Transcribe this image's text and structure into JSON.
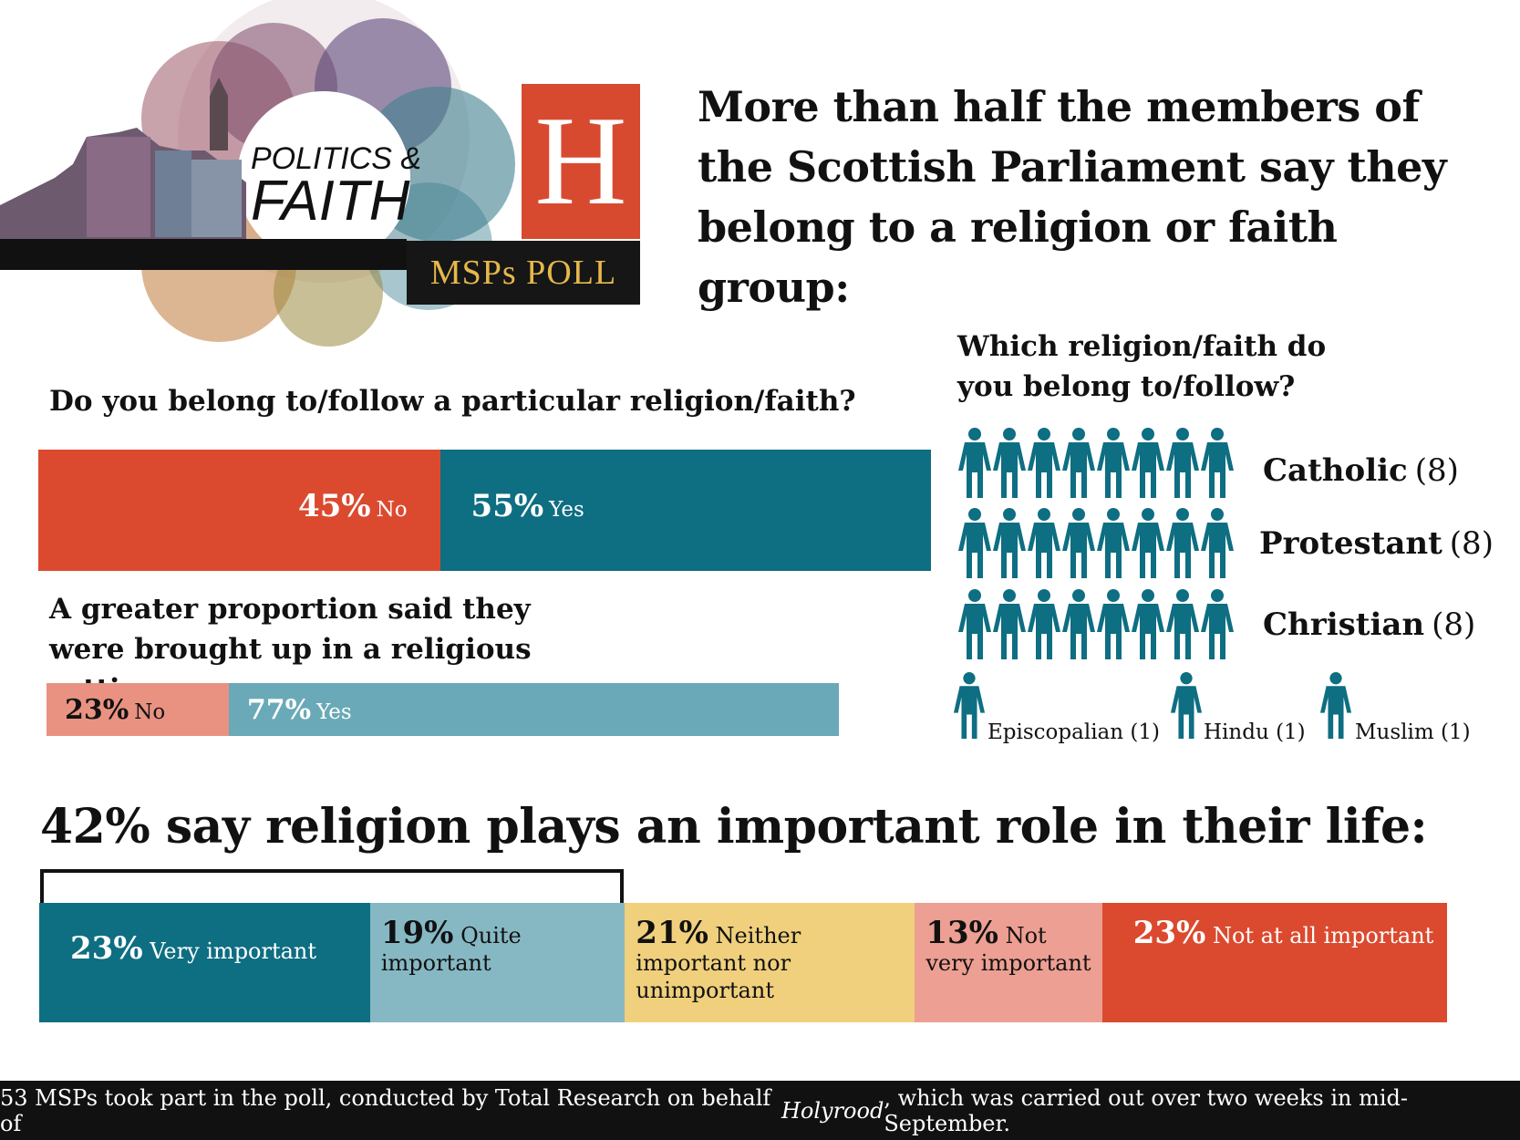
{
  "logo": {
    "line1": "POLITICS &",
    "line2": "FAITH",
    "letter": "H",
    "poll_label": "MSPs POLL"
  },
  "headline": "More than half the members of the Scottish Parliament say they belong to a religion or faith group:",
  "q1": {
    "title": "Do you belong to/follow a particular religion/faith?",
    "segments": [
      {
        "value": "45%",
        "label": "No",
        "pct": 45,
        "color": "#db4a2f"
      },
      {
        "value": "55%",
        "label": "Yes",
        "pct": 55,
        "color": "#0e6e82"
      }
    ]
  },
  "q2": {
    "title": "A greater proportion said they were brought up in a religious setting:",
    "segments": [
      {
        "value": "23%",
        "label": "No",
        "pct": 23,
        "color": "#e99282"
      },
      {
        "value": "77%",
        "label": "Yes",
        "pct": 77,
        "color": "#6aa9b7"
      }
    ]
  },
  "religion": {
    "title": "Which religion/faith do you belong to/follow?",
    "icon_color": "#0e6e82",
    "groups": [
      {
        "name": "Catholic",
        "count_text": "(8)",
        "count": 8
      },
      {
        "name": "Protestant",
        "count_text": "(8)",
        "count": 8
      },
      {
        "name": "Christian",
        "count_text": "(8)",
        "count": 8
      }
    ],
    "small": [
      {
        "label": "Episcopalian (1)",
        "count": 1
      },
      {
        "label": "Hindu (1)",
        "count": 1
      },
      {
        "label": "Muslim (1)",
        "count": 1
      }
    ]
  },
  "importance": {
    "title": "42% say religion plays an important role in their life:",
    "segments": [
      {
        "value": "23%",
        "label": "Very important",
        "pct": 23,
        "color": "#0e6e82",
        "text_color": "#ffffff"
      },
      {
        "value": "19%",
        "label": "Quite important",
        "pct": 19,
        "color": "#86b8c4",
        "text_color": "#111111"
      },
      {
        "value": "21%",
        "label": "Neither important nor unimportant",
        "pct": 21,
        "color": "#f0d07c",
        "text_color": "#111111"
      },
      {
        "value": "13%",
        "label": "Not very important",
        "pct": 13,
        "color": "#ec9f92",
        "text_color": "#111111"
      },
      {
        "value": "23%",
        "label": "Not at all important",
        "pct": 23,
        "color": "#db4a2f",
        "text_color": "#ffffff"
      }
    ]
  },
  "footer": {
    "text_before": "53 MSPs took part in the poll, conducted by Total Research on behalf of ",
    "publication": "Holyrood",
    "text_after": ", which was carried out over two weeks in mid-September."
  },
  "chart_data": [
    {
      "type": "bar",
      "title": "Do you belong to/follow a particular religion/faith?",
      "categories": [
        "No",
        "Yes"
      ],
      "values": [
        45,
        55
      ],
      "unit": "%"
    },
    {
      "type": "bar",
      "title": "A greater proportion said they were brought up in a religious setting:",
      "categories": [
        "No",
        "Yes"
      ],
      "values": [
        23,
        77
      ],
      "unit": "%"
    },
    {
      "type": "bar",
      "title": "Which religion/faith do you belong to/follow?",
      "categories": [
        "Catholic",
        "Protestant",
        "Christian",
        "Episcopalian",
        "Hindu",
        "Muslim"
      ],
      "values": [
        8,
        8,
        8,
        1,
        1,
        1
      ]
    },
    {
      "type": "bar",
      "title": "42% say religion plays an important role in their life:",
      "categories": [
        "Very important",
        "Quite important",
        "Neither important nor unimportant",
        "Not very important",
        "Not at all important"
      ],
      "values": [
        23,
        19,
        21,
        13,
        23
      ],
      "unit": "%"
    }
  ]
}
